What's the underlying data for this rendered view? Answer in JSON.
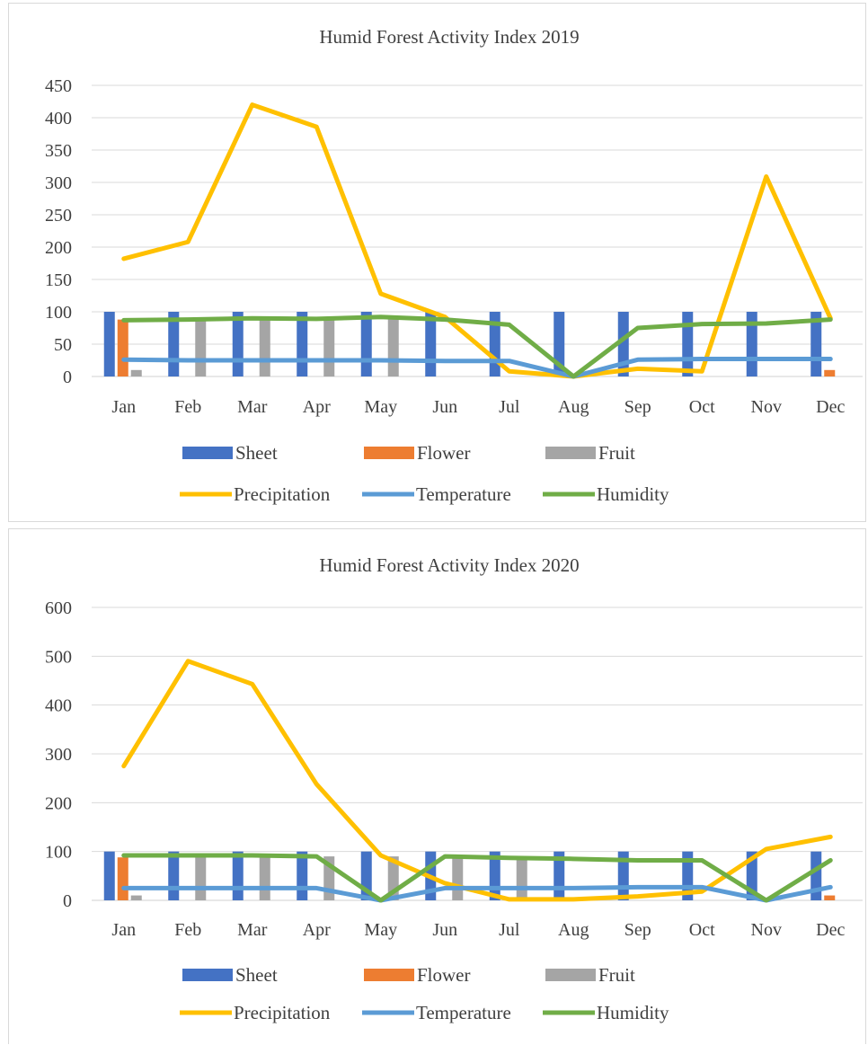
{
  "chart_data": [
    {
      "type": "bar",
      "title": "Humid Forest Activity Index 2019",
      "categories": [
        "Jan",
        "Feb",
        "Mar",
        "Apr",
        "May",
        "Jun",
        "Jul",
        "Aug",
        "Sep",
        "Oct",
        "Nov",
        "Dec"
      ],
      "ylim": [
        0,
        450
      ],
      "yticks": [
        0,
        50,
        100,
        150,
        200,
        250,
        300,
        350,
        400,
        450
      ],
      "grid": true,
      "legend_position": "bottom",
      "bar_series": [
        {
          "name": "Sheet",
          "color": "#4472C4",
          "values": [
            100,
            100,
            100,
            100,
            100,
            100,
            100,
            100,
            100,
            100,
            100,
            100
          ]
        },
        {
          "name": "Flower",
          "color": "#ED7D31",
          "values": [
            88,
            0,
            0,
            0,
            0,
            0,
            0,
            0,
            0,
            0,
            0,
            10
          ]
        },
        {
          "name": "Fruit",
          "color": "#A5A5A5",
          "values": [
            10,
            90,
            90,
            90,
            90,
            0,
            0,
            0,
            0,
            0,
            0,
            0
          ]
        }
      ],
      "line_series": [
        {
          "name": "Precipitation",
          "color": "#FFC000",
          "values": [
            182,
            208,
            420,
            386,
            128,
            92,
            8,
            0,
            12,
            8,
            309,
            90
          ]
        },
        {
          "name": "Temperature",
          "color": "#5B9BD5",
          "values": [
            26,
            25,
            25,
            25,
            25,
            24,
            24,
            0,
            26,
            27,
            27,
            27
          ]
        },
        {
          "name": "Humidity",
          "color": "#70AD47",
          "values": [
            87,
            88,
            90,
            89,
            92,
            88,
            80,
            0,
            75,
            81,
            82,
            88
          ]
        }
      ]
    },
    {
      "type": "bar",
      "title": "Humid Forest Activity Index 2020",
      "categories": [
        "Jan",
        "Feb",
        "Mar",
        "Apr",
        "May",
        "Jun",
        "Jul",
        "Aug",
        "Sep",
        "Oct",
        "Nov",
        "Dec"
      ],
      "ylim": [
        0,
        600
      ],
      "yticks": [
        0,
        100,
        200,
        300,
        400,
        500,
        600
      ],
      "grid": true,
      "legend_position": "bottom",
      "bar_series": [
        {
          "name": "Sheet",
          "color": "#4472C4",
          "values": [
            100,
            100,
            100,
            100,
            100,
            100,
            100,
            100,
            100,
            100,
            100,
            100
          ]
        },
        {
          "name": "Flower",
          "color": "#ED7D31",
          "values": [
            88,
            0,
            0,
            0,
            0,
            0,
            0,
            0,
            0,
            0,
            0,
            10
          ]
        },
        {
          "name": "Fruit",
          "color": "#A5A5A5",
          "values": [
            10,
            90,
            90,
            90,
            90,
            90,
            90,
            0,
            0,
            0,
            0,
            0
          ]
        }
      ],
      "line_series": [
        {
          "name": "Precipitation",
          "color": "#FFC000",
          "values": [
            275,
            490,
            443,
            238,
            92,
            35,
            2,
            2,
            8,
            18,
            105,
            130
          ]
        },
        {
          "name": "Temperature",
          "color": "#5B9BD5",
          "values": [
            25,
            25,
            25,
            25,
            0,
            25,
            25,
            25,
            27,
            27,
            0,
            27
          ]
        },
        {
          "name": "Humidity",
          "color": "#70AD47",
          "values": [
            92,
            92,
            92,
            90,
            0,
            90,
            87,
            85,
            82,
            82,
            0,
            82
          ]
        }
      ]
    }
  ]
}
